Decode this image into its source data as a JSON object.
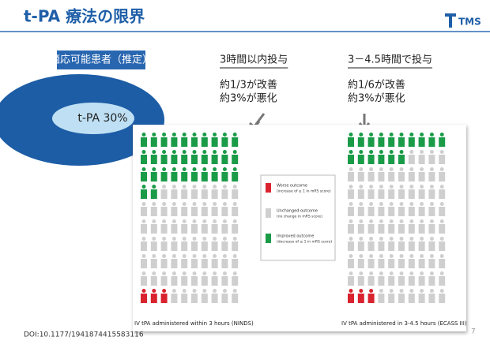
{
  "header": {
    "title": "t-PA 療法の限界",
    "logo": "TMS"
  },
  "badge": "適応可能患者（推定）",
  "ellipse_label": "t-PA 30%",
  "columns": [
    {
      "heading": "3時間以内投与",
      "lines": [
        "約1/3が改善",
        "約3%が悪化"
      ]
    },
    {
      "heading": "3－4.5時間で投与",
      "lines": [
        "約1/6が改善",
        "約3%が悪化"
      ]
    }
  ],
  "figure": {
    "legend": [
      {
        "title": "Worse outcome",
        "subtitle": "(increase of ≥ 1 in mRS score)",
        "color": "#d9232e"
      },
      {
        "title": "Unchanged outcome",
        "subtitle": "(no change in mRS score)",
        "color": "#cfcfcf"
      },
      {
        "title": "Improved outcome",
        "subtitle": "(decrease of ≥ 1 in mRS score)",
        "color": "#1a9b48"
      }
    ],
    "panels": [
      {
        "caption": "IV tPA administered within 3 hours (NINDS)",
        "improved": 32,
        "worsened": 3
      },
      {
        "caption": "IV tPA administered in 3-4.5 hours (ECASS III)",
        "improved": 16,
        "worsened": 3
      }
    ]
  },
  "doi": "DOI:10.1177/1941874415583116",
  "page_number": "7"
}
